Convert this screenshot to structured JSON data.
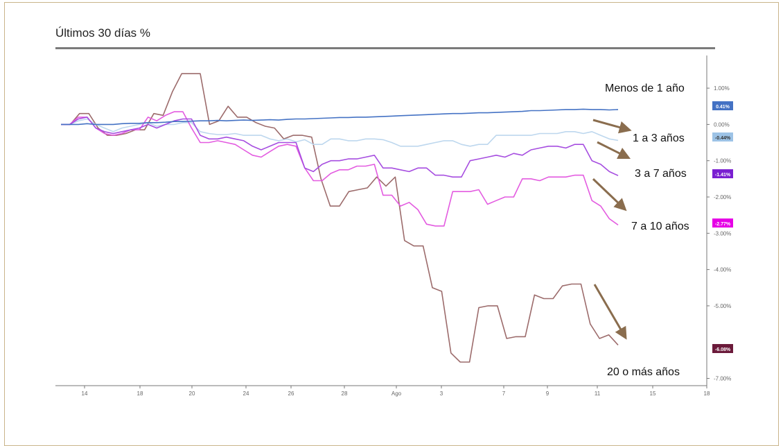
{
  "chart_data": {
    "type": "line",
    "title": "Últimos 30 días %",
    "xlabel": "",
    "ylabel": "",
    "x_ticks": [
      "14",
      "18",
      "20",
      "24",
      "26",
      "28",
      "Ago",
      "3",
      "7",
      "9",
      "11",
      "15",
      "18"
    ],
    "y_ticks": [
      "1.00%",
      "0.00%",
      "-1.00%",
      "-2.00%",
      "-3.00%",
      "-4.00%",
      "-5.00%",
      "-7.00%"
    ],
    "ylim": [
      -7.2,
      1.9
    ],
    "grid": false,
    "series": [
      {
        "name": "Menos de 1 año",
        "color": "#4472c4",
        "badge": "0.41%",
        "values": [
          0.0,
          0.0,
          0.0,
          0.02,
          0.0,
          0.0,
          0.0,
          0.02,
          0.03,
          0.03,
          0.05,
          0.05,
          0.06,
          0.08,
          0.08,
          0.09,
          0.1,
          0.1,
          0.11,
          0.1,
          0.11,
          0.12,
          0.11,
          0.12,
          0.13,
          0.12,
          0.14,
          0.15,
          0.15,
          0.16,
          0.17,
          0.18,
          0.19,
          0.19,
          0.2,
          0.2,
          0.21,
          0.22,
          0.23,
          0.24,
          0.25,
          0.26,
          0.27,
          0.28,
          0.29,
          0.3,
          0.3,
          0.31,
          0.32,
          0.32,
          0.33,
          0.34,
          0.35,
          0.36,
          0.38,
          0.38,
          0.39,
          0.4,
          0.41,
          0.41,
          0.42,
          0.41,
          0.41,
          0.4,
          0.41
        ]
      },
      {
        "name": "1 a 3 años",
        "color": "#bdd7ee",
        "badge": "-0.44%",
        "values": [
          0.0,
          0.0,
          0.1,
          0.15,
          0.0,
          -0.1,
          -0.2,
          -0.1,
          -0.05,
          0.0,
          0.05,
          -0.05,
          0.0,
          0.0,
          0.05,
          0.05,
          -0.2,
          -0.25,
          -0.28,
          -0.28,
          -0.25,
          -0.3,
          -0.3,
          -0.3,
          -0.4,
          -0.45,
          -0.4,
          -0.48,
          -0.42,
          -0.55,
          -0.55,
          -0.4,
          -0.4,
          -0.45,
          -0.45,
          -0.4,
          -0.4,
          -0.42,
          -0.5,
          -0.6,
          -0.6,
          -0.6,
          -0.55,
          -0.5,
          -0.45,
          -0.45,
          -0.55,
          -0.6,
          -0.55,
          -0.55,
          -0.3,
          -0.3,
          -0.3,
          -0.3,
          -0.3,
          -0.25,
          -0.25,
          -0.25,
          -0.2,
          -0.2,
          -0.25,
          -0.2,
          -0.3,
          -0.4,
          -0.44
        ]
      },
      {
        "name": "3 a 7 años",
        "color": "#a64de0",
        "badge": "-1.41%",
        "values": [
          0.0,
          0.0,
          0.15,
          0.2,
          -0.1,
          -0.2,
          -0.25,
          -0.2,
          -0.15,
          -0.1,
          0.0,
          -0.1,
          0.0,
          0.1,
          0.15,
          0.15,
          -0.3,
          -0.4,
          -0.4,
          -0.35,
          -0.4,
          -0.45,
          -0.6,
          -0.7,
          -0.6,
          -0.5,
          -0.5,
          -0.5,
          -1.2,
          -1.3,
          -1.1,
          -1.0,
          -1.0,
          -0.95,
          -0.95,
          -0.9,
          -0.85,
          -1.2,
          -1.2,
          -1.25,
          -1.3,
          -1.2,
          -1.2,
          -1.4,
          -1.4,
          -1.45,
          -1.45,
          -1.0,
          -0.95,
          -0.9,
          -0.85,
          -0.9,
          -0.8,
          -0.85,
          -0.7,
          -0.65,
          -0.6,
          -0.6,
          -0.65,
          -0.55,
          -0.55,
          -1.0,
          -1.1,
          -1.3,
          -1.41
        ]
      },
      {
        "name": "7 a 10 años",
        "color": "#e35be0",
        "badge": "-2.77%",
        "values": [
          0.0,
          0.0,
          0.2,
          0.2,
          -0.1,
          -0.25,
          -0.3,
          -0.25,
          -0.15,
          -0.15,
          0.2,
          0.1,
          0.25,
          0.35,
          0.35,
          -0.1,
          -0.5,
          -0.5,
          -0.45,
          -0.5,
          -0.55,
          -0.7,
          -0.85,
          -0.9,
          -0.75,
          -0.6,
          -0.55,
          -0.6,
          -1.2,
          -1.55,
          -1.55,
          -1.35,
          -1.25,
          -1.25,
          -1.15,
          -1.15,
          -1.1,
          -1.95,
          -1.95,
          -2.25,
          -2.15,
          -2.35,
          -2.75,
          -2.8,
          -2.8,
          -1.85,
          -1.85,
          -1.85,
          -1.8,
          -2.2,
          -2.1,
          -2.0,
          -2.0,
          -1.5,
          -1.5,
          -1.55,
          -1.45,
          -1.45,
          -1.45,
          -1.4,
          -1.4,
          -2.1,
          -2.25,
          -2.6,
          -2.77
        ]
      },
      {
        "name": "20 o más años",
        "color": "#9c6b6b",
        "badge": "-6.08%",
        "values": [
          0.0,
          0.0,
          0.3,
          0.3,
          -0.1,
          -0.3,
          -0.3,
          -0.25,
          -0.15,
          -0.15,
          0.3,
          0.25,
          0.9,
          1.4,
          1.4,
          1.4,
          0.0,
          0.1,
          0.5,
          0.2,
          0.2,
          0.05,
          -0.05,
          -0.1,
          -0.4,
          -0.3,
          -0.3,
          -0.35,
          -1.5,
          -2.25,
          -2.25,
          -1.85,
          -1.8,
          -1.75,
          -1.45,
          -1.7,
          -1.45,
          -3.2,
          -3.35,
          -3.35,
          -4.5,
          -4.6,
          -6.3,
          -6.55,
          -6.55,
          -5.05,
          -5.0,
          -5.0,
          -5.9,
          -5.85,
          -5.85,
          -4.7,
          -4.8,
          -4.8,
          -4.45,
          -4.4,
          -4.4,
          -5.5,
          -5.9,
          -5.8,
          -6.08
        ]
      }
    ]
  },
  "labels": {
    "menos_1": "Menos de 1 año",
    "uno_tres": "1 a 3 años",
    "tres_siete": "3 a 7 años",
    "siete_diez": "7 a 10 años",
    "veinte": "20 o más años"
  }
}
